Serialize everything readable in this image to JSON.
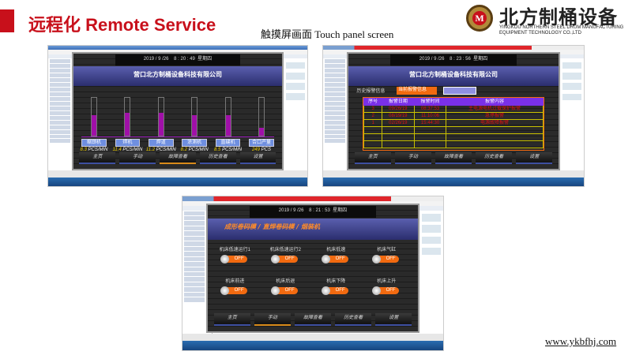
{
  "slide": {
    "title": "远程化 Remote Service",
    "subtitle": "触摸屏画面 Touch panel screen",
    "website": "www.ykbfhj.com"
  },
  "logo": {
    "seal_letter": "M",
    "name_cn": "北方制桶设备",
    "name_en": "YINGKOU NORTHERN STEEL DRUM MANUFACTURING EQUIPMENT TECHNOLOGY CO.,LTD"
  },
  "colors": {
    "brand_red": "#c8101b",
    "bar_purple": "#a010a8",
    "alarm_red": "#e01010",
    "toggle_orange": "#f26a10"
  },
  "company": "营口北方制桶设备科技有限公司",
  "nav": [
    "主页",
    "手动",
    "故障查看",
    "历史查看",
    "设置"
  ],
  "screens": [
    {
      "datetime": "2019 / 9 /26    8 : 20 : 49  星期四",
      "active_nav": 2,
      "stations": [
        {
          "label": "缩颈机",
          "value": "8.3",
          "unit": "PCS/MIN",
          "level": 0.55
        },
        {
          "label": "焊机",
          "value": "11.4",
          "unit": "PCS/MIN",
          "level": 0.6
        },
        {
          "label": "焊道",
          "value": "11.2",
          "unit": "PCS/MIN",
          "level": 0.6
        },
        {
          "label": "涂测机",
          "value": "8.2",
          "unit": "PCS/MIN",
          "level": 0.55
        },
        {
          "label": "直缝机",
          "value": "8.5",
          "unit": "PCS/MIN",
          "level": 0.55
        },
        {
          "label": "合口产量",
          "value": "249",
          "unit": "PCS",
          "level": 0.2
        }
      ]
    },
    {
      "datetime": "2019 / 9 /26    8 : 23 : 56  星期四",
      "active_nav": -1,
      "history_label": "历史报警信息",
      "current_tab": "当前报警信息",
      "headers": [
        "序号",
        "报警日期",
        "报警时间",
        "报警内容"
      ],
      "rows": [
        [
          "3",
          "09/26/19",
          "08:37:53",
          "主电源电机过载保护报警"
        ],
        [
          "2",
          "08/19/19",
          "11:10:06",
          "急停报警"
        ],
        [
          "1",
          "02/26/19",
          "15:44:30",
          "电源故障报警"
        ],
        [
          "",
          "",
          "",
          ""
        ],
        [
          "",
          "",
          "",
          ""
        ],
        [
          "",
          "",
          "",
          ""
        ]
      ]
    },
    {
      "datetime": "2019 / 9 /26    8 : 21 : 53  星期四",
      "active_nav": 1,
      "breadcrumb": "成形卷码模 / 直焊卷码模 / 烟装机",
      "toggles": [
        {
          "label": "机床低速运行1",
          "state": "OFF"
        },
        {
          "label": "机床低速运行2",
          "state": "OFF"
        },
        {
          "label": "机床低速",
          "state": "OFF"
        },
        {
          "label": "机床气缸",
          "state": "OFF"
        },
        {
          "label": "机床前进",
          "state": "OFF"
        },
        {
          "label": "机床后退",
          "state": "OFF"
        },
        {
          "label": "机床下降",
          "state": "OFF"
        },
        {
          "label": "机床上升",
          "state": "OFF"
        }
      ]
    }
  ]
}
